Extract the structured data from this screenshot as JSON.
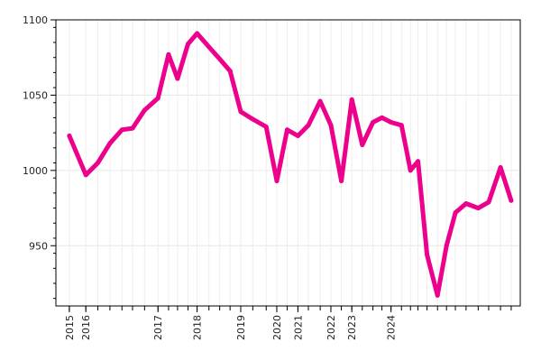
{
  "chart_data": {
    "type": "line",
    "title": "",
    "xlabel": "",
    "ylabel": "",
    "x_dates": [
      "2015-07-01",
      "2015-12-15",
      "2016-04-15",
      "2016-08-15",
      "2016-12-15",
      "2017-04-01",
      "2017-08-01",
      "2017-12-15",
      "2018-04-01",
      "2018-07-01",
      "2018-10-15",
      "2019-01-15",
      "2019-05-15",
      "2019-09-01",
      "2019-12-15",
      "2020-04-01",
      "2020-08-01",
      "2020-12-15",
      "2021-04-01",
      "2021-07-15",
      "2021-11-01",
      "2022-02-15",
      "2022-06-15",
      "2022-10-01",
      "2023-01-15",
      "2023-05-01",
      "2023-08-15",
      "2023-12-01",
      "2024-03-01",
      "2024-06-01",
      "2024-09-15",
      "2024-12-15",
      "2025-03-01",
      "2025-06-01",
      "2025-09-15",
      "2025-12-15",
      "2026-03-15",
      "2026-07-01",
      "2026-11-01",
      "2027-02-15",
      "2027-06-15",
      "2027-10-01"
    ],
    "x_tick_labels": [
      {
        "label": "2015",
        "date": "2015-07-01"
      },
      {
        "label": "2016",
        "date": "2015-12-15"
      },
      {
        "label": "2017",
        "date": "2017-12-15"
      },
      {
        "label": "2018",
        "date": "2019-01-15"
      },
      {
        "label": "2019",
        "date": "2020-04-01"
      },
      {
        "label": "2020",
        "date": "2021-04-01"
      },
      {
        "label": "2021",
        "date": "2021-11-01"
      },
      {
        "label": "2022",
        "date": "2022-10-01"
      },
      {
        "label": "2023",
        "date": "2023-05-01"
      },
      {
        "label": "2024",
        "date": "2024-06-01"
      }
    ],
    "series": [
      {
        "name": "",
        "color": "#ec008c",
        "values": [
          1023,
          997,
          1005,
          1018,
          1027,
          1028,
          1040,
          1048,
          1077,
          1061,
          1084,
          1091,
          1082,
          1074,
          1066,
          1039,
          1034,
          1029,
          993,
          1027,
          1023,
          1030,
          1046,
          1030,
          993,
          1047,
          1017,
          1032,
          1035,
          1032,
          1030,
          1000,
          1006,
          944,
          917,
          950,
          972,
          978,
          975,
          979,
          1002,
          980
        ]
      }
    ],
    "y_ticks": [
      950,
      1000,
      1050,
      1100
    ],
    "ylim": [
      910,
      1100
    ],
    "xlim": [
      "2015-02-15",
      "2028-01-01"
    ],
    "grid": true,
    "legend": "none"
  }
}
